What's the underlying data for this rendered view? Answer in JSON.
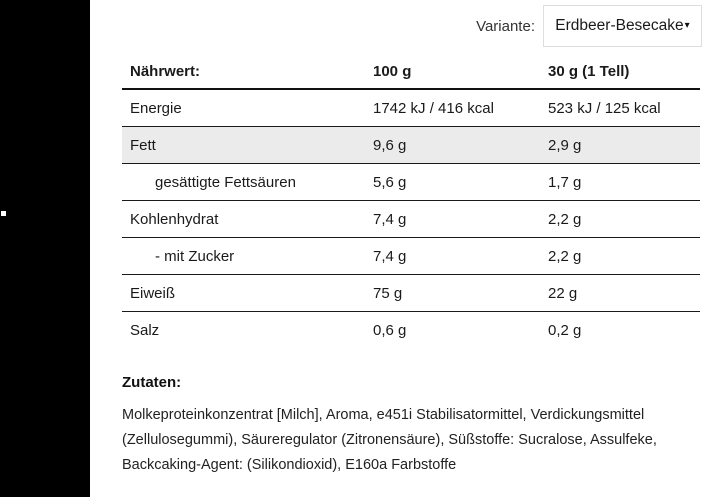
{
  "colors": {
    "sidebar_bg": "#000000",
    "shaded_row_bg": "#ebebeb",
    "dropdown_border": "#dedede",
    "table_line": "#1a1a1a"
  },
  "variant": {
    "label": "Variante:",
    "selected": "Erdbeer-Besecake",
    "caret_icon": "▾"
  },
  "nutrition_table": {
    "headers": {
      "col1": "Nährwert:",
      "col2": "100 g",
      "col3": "30 g (1 Tell)"
    },
    "rows": [
      {
        "label": "Energie",
        "v100": "1742 kJ / 416 kcal",
        "v30": "523 kJ / 125 kcal"
      },
      {
        "label": "Fett",
        "v100": "9,6 g",
        "v30": "2,9 g"
      },
      {
        "label": "gesättigte Fettsäuren",
        "v100": "5,6 g",
        "v30": "1,7 g"
      },
      {
        "label": "Kohlenhydrat",
        "v100": "7,4 g",
        "v30": "2,2 g"
      },
      {
        "label": "- mit Zucker",
        "v100": "7,4 g",
        "v30": "2,2 g"
      },
      {
        "label": "Eiweiß",
        "v100": "75 g",
        "v30": "22 g"
      },
      {
        "label": "Salz",
        "v100": "0,6 g",
        "v30": "0,2 g"
      }
    ]
  },
  "ingredients": {
    "heading": "Zutaten:",
    "text": "Molkeproteinkonzentrat [Milch], Aroma, e451i Stabilisatormittel, Verdickungsmittel (Zellulosegummi), Säureregulator (Zitronensäure), Süßstoffe: Sucralose, Assulfeke, Backcaking-Agent: (Silikondioxid), E160a Farbstoffe"
  }
}
